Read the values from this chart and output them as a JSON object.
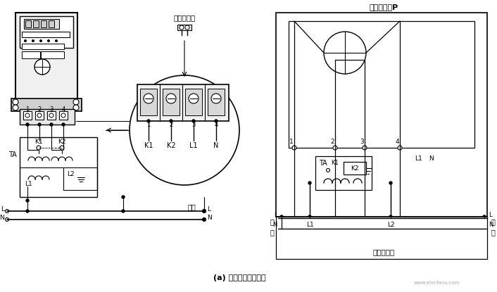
{
  "bg_color": "#ffffff",
  "title_bottom": "(a) 专用电能表接线图",
  "title_right_top": "单相电能表P",
  "subtitle_right": "电路原理图",
  "watermark": "www.elecfans.com",
  "figsize": [
    7.06,
    4.15
  ],
  "dpi": 100
}
